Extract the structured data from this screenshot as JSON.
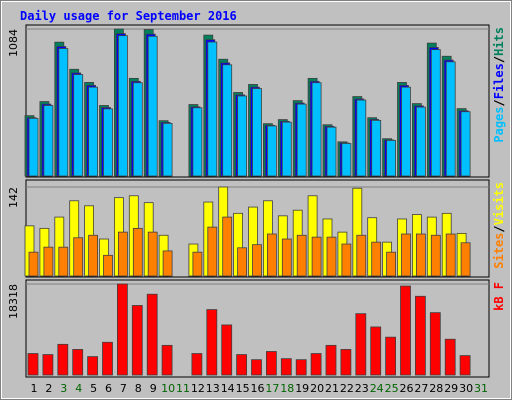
{
  "chart_data": [
    {
      "type": "bar",
      "title": "Daily usage for September 2016",
      "separator": "/",
      "categories": [
        "1",
        "2",
        "3",
        "4",
        "5",
        "6",
        "7",
        "8",
        "9",
        "10",
        "11",
        "12",
        "13",
        "14",
        "15",
        "16",
        "17",
        "18",
        "19",
        "20",
        "21",
        "22",
        "23",
        "24",
        "25",
        "26",
        "27",
        "28",
        "29",
        "30",
        "31"
      ],
      "category_colors": [
        "#000000",
        "#000000",
        "#006400",
        "#006400",
        "#000000",
        "#000000",
        "#000000",
        "#000000",
        "#000000",
        "#006400",
        "#006400",
        "#000000",
        "#000000",
        "#000000",
        "#000000",
        "#000000",
        "#006400",
        "#006400",
        "#000000",
        "#000000",
        "#000000",
        "#000000",
        "#000000",
        "#006400",
        "#006400",
        "#000000",
        "#000000",
        "#000000",
        "#000000",
        "#000000",
        "#006400"
      ],
      "ylim": [
        0,
        1084
      ],
      "yticks": [
        1084
      ],
      "series": [
        {
          "name": "Pages",
          "color": "#00C0FF",
          "values": [
            425,
            520,
            940,
            748,
            655,
            495,
            1035,
            688,
            1030,
            388,
            null,
            503,
            988,
            820,
            590,
            645,
            369,
            397,
            530,
            688,
            360,
            240,
            560,
            410,
            262,
            655,
            508,
            932,
            842,
            474,
            null
          ]
        },
        {
          "name": "Files",
          "color": "#0000FF",
          "values": [
            430,
            530,
            955,
            760,
            668,
            505,
            1050,
            698,
            1046,
            395,
            null,
            510,
            1005,
            834,
            598,
            655,
            374,
            403,
            538,
            698,
            366,
            244,
            568,
            417,
            266,
            668,
            517,
            948,
            855,
            481,
            null
          ]
        },
        {
          "name": "Hits",
          "color": "#00805C",
          "values": [
            445,
            549,
            987,
            787,
            690,
            520,
            1084,
            720,
            1080,
            408,
            null,
            527,
            1039,
            861,
            616,
            675,
            386,
            416,
            556,
            720,
            378,
            252,
            586,
            430,
            275,
            690,
            534,
            980,
            883,
            497,
            null
          ]
        }
      ]
    },
    {
      "type": "bar",
      "separator": "/",
      "ylim": [
        0,
        142
      ],
      "yticks": [
        142
      ],
      "series": [
        {
          "name": "Sites",
          "color": "#FF8000",
          "values": [
            38,
            46,
            46,
            61,
            65,
            33,
            70,
            76,
            70,
            40,
            null,
            38,
            78,
            94,
            45,
            50,
            67,
            59,
            65,
            62,
            62,
            51,
            65,
            54,
            38,
            67,
            67,
            65,
            67,
            53,
            null
          ]
        },
        {
          "name": "Visits",
          "color": "#FFFF00",
          "values": [
            80,
            76,
            94,
            120,
            112,
            59,
            125,
            128,
            117,
            65,
            null,
            51,
            118,
            142,
            100,
            110,
            120,
            96,
            105,
            128,
            91,
            70,
            140,
            93,
            54,
            91,
            98,
            94,
            100,
            68,
            null
          ]
        }
      ]
    },
    {
      "type": "bar",
      "ylim": [
        0,
        18318
      ],
      "yticks": [
        18318
      ],
      "series": [
        {
          "name": "kB F",
          "color": "#FF0000",
          "values": [
            4322,
            4116,
            6175,
            5146,
            3705,
            6587,
            18318,
            13996,
            16260,
            5969,
            null,
            4322,
            13172,
            10085,
            4116,
            3087,
            4734,
            3293,
            3087,
            4322,
            5969,
            5146,
            12349,
            9673,
            7615,
            17907,
            15848,
            12555,
            7203,
            3910,
            null
          ]
        }
      ]
    }
  ]
}
